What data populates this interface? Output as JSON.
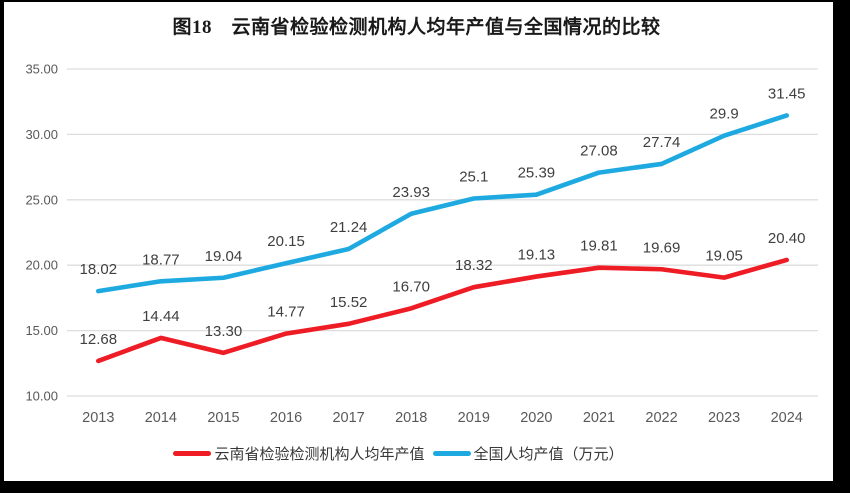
{
  "title": "图18　云南省检验检测机构人均年产值与全国情况的比较",
  "chart_data": {
    "type": "line",
    "title": "图18　云南省检验检测机构人均年产值与全国情况的比较",
    "categories": [
      "2013",
      "2014",
      "2015",
      "2016",
      "2017",
      "2018",
      "2019",
      "2020",
      "2021",
      "2022",
      "2023",
      "2024"
    ],
    "series": [
      {
        "name": "云南省检验检测机构人均年产值",
        "color": "#ee1c25",
        "values": [
          12.68,
          14.44,
          13.3,
          14.77,
          15.52,
          16.7,
          18.32,
          19.13,
          19.81,
          19.69,
          19.05,
          20.4
        ],
        "point_labels": [
          "12.68",
          "14.44",
          "13.30",
          "14.77",
          "15.52",
          "16.70",
          "18.32",
          "19.13",
          "19.81",
          "19.69",
          "19.05",
          "20.40"
        ]
      },
      {
        "name": "全国人均产值（万元）",
        "color": "#1eaae1",
        "values": [
          18.02,
          18.77,
          19.04,
          20.15,
          21.24,
          23.93,
          25.1,
          25.39,
          27.08,
          27.74,
          29.9,
          31.45
        ],
        "point_labels": [
          "18.02",
          "18.77",
          "19.04",
          "20.15",
          "21.24",
          "23.93",
          "25.1",
          "25.39",
          "27.08",
          "27.74",
          "29.9",
          "31.45"
        ]
      }
    ],
    "y_axis": {
      "min": 10,
      "max": 35,
      "ticks": [
        "10.00",
        "15.00",
        "20.00",
        "25.00",
        "30.00",
        "35.00"
      ]
    },
    "x_axis_label": "",
    "y_axis_label": "",
    "grid": true,
    "legend_position": "bottom",
    "colors": {
      "gridline": "#dedede",
      "axis_text": "#595959",
      "data_label_text": "#3f3f3f",
      "background": "#ffffff",
      "frame": "#000000"
    }
  }
}
